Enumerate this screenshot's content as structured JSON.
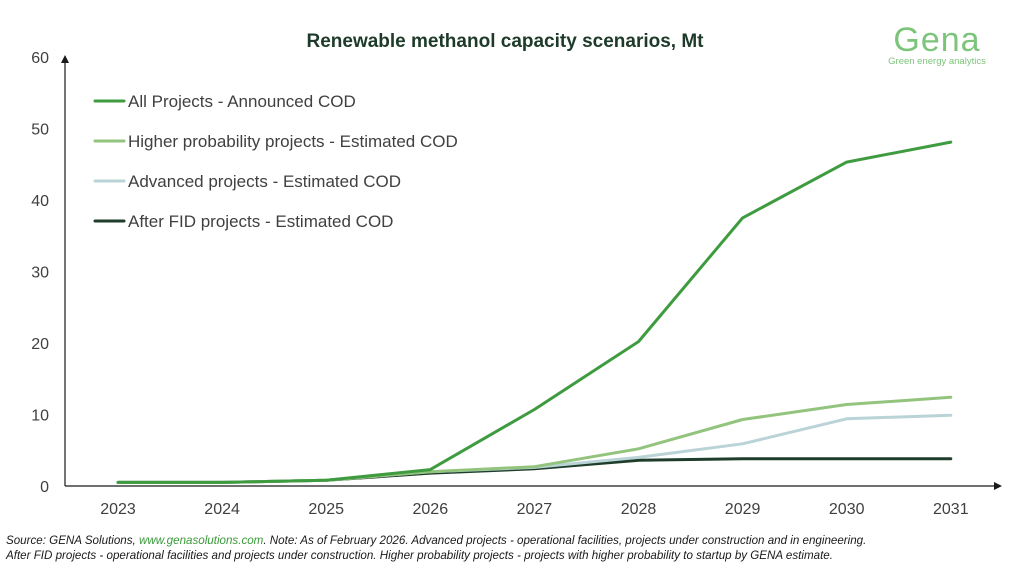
{
  "chart_data": {
    "type": "line",
    "title": "Renewable methanol capacity scenarios, Mt",
    "xlabel": "",
    "ylabel": "",
    "x": [
      "2023",
      "2024",
      "2025",
      "2026",
      "2027",
      "2028",
      "2029",
      "2030",
      "2031"
    ],
    "ylim": [
      0,
      60
    ],
    "yticks": [
      0,
      10,
      20,
      30,
      40,
      50,
      60
    ],
    "grid": false,
    "legend_position": "top-left",
    "series": [
      {
        "name": "All Projects - Announced COD",
        "color": "#3f9b3f",
        "values": [
          0.5,
          0.5,
          0.8,
          2.3,
          10.7,
          20.2,
          37.5,
          45.3,
          48.1
        ]
      },
      {
        "name": "Higher probability projects - Estimated COD",
        "color": "#93c47d",
        "values": [
          0.5,
          0.5,
          0.8,
          2.0,
          2.7,
          5.2,
          9.3,
          11.4,
          12.4
        ]
      },
      {
        "name": "Advanced projects - Estimated COD",
        "color": "#b9d3d6",
        "values": [
          0.5,
          0.5,
          0.8,
          2.0,
          2.6,
          4.0,
          5.9,
          9.4,
          9.9
        ]
      },
      {
        "name": "After FID projects - Estimated COD",
        "color": "#1f3d2b",
        "values": [
          0.5,
          0.5,
          0.8,
          1.8,
          2.4,
          3.6,
          3.8,
          3.8,
          3.8
        ]
      }
    ]
  },
  "logo": {
    "name": "Gena",
    "tagline": "Green energy analytics"
  },
  "footnote": {
    "prefix": "Source: GENA Solutions, ",
    "link": "www.genasolutions.com",
    "line1_rest": ". Note: As of February 2026. Advanced projects - operational facilities, projects under construction and in engineering.",
    "line2": "After FID projects - operational facilities and projects under construction. Higher probability projects - projects with higher probability to startup by GENA estimate."
  }
}
